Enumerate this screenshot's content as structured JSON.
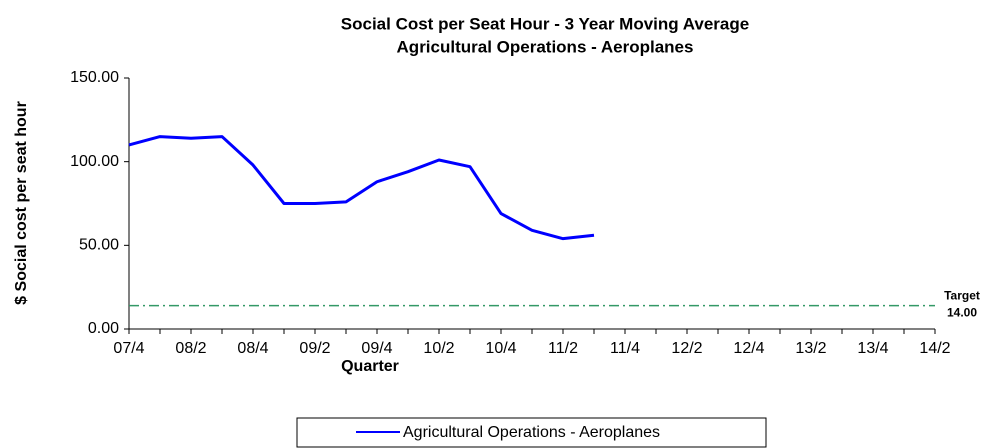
{
  "chart_data": {
    "type": "line",
    "title": "Social Cost per Seat Hour - 3 Year Moving Average",
    "subtitle": "Agricultural Operations - Aeroplanes",
    "x_label": "Quarter",
    "y_label": "$ Social cost per seat hour",
    "categories": [
      "07/4",
      null,
      "08/2",
      null,
      "08/4",
      null,
      "09/2",
      null,
      "09/4",
      null,
      "10/2",
      null,
      "10/4",
      null,
      "11/2",
      null,
      "11/4",
      null,
      "12/2",
      null,
      "12/4",
      null,
      "13/2",
      null,
      "13/4",
      null,
      "14/2"
    ],
    "series": [
      {
        "name": "Agricultural Operations - Aeroplanes",
        "color": "#0000ff",
        "values": [
          110,
          115,
          114,
          115,
          98,
          75,
          75,
          76,
          88,
          94,
          101,
          97,
          69,
          59,
          54,
          56,
          null,
          null,
          null,
          null,
          null,
          null,
          null,
          null,
          null,
          null,
          null
        ]
      }
    ],
    "ylim": [
      0,
      150
    ],
    "yticks": [
      {
        "value": 0,
        "label": "0.00"
      },
      {
        "value": 50,
        "label": "50.00"
      },
      {
        "value": 100,
        "label": "100.00"
      },
      {
        "value": 150,
        "label": "150.00"
      }
    ],
    "target": {
      "label": "Target",
      "value": 14,
      "value_label": "14.00",
      "color": "#339966"
    },
    "legend": "bottom"
  }
}
